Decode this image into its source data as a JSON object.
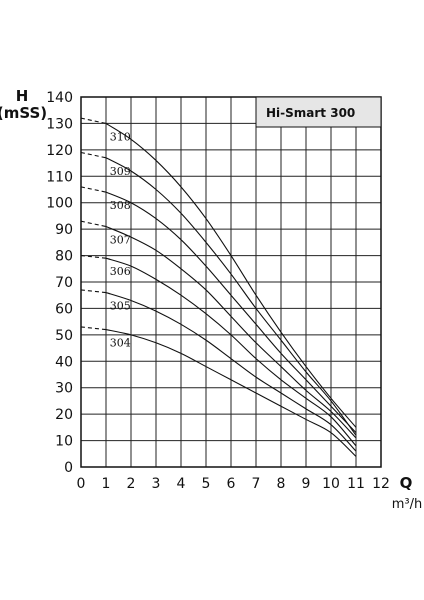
{
  "chart_data": {
    "type": "line",
    "header_label": "Hi-Smart 300",
    "y_title": "H",
    "y_unit": "(mSS)",
    "x_title": "Q",
    "x_unit": "m³/h",
    "xlim": [
      0,
      12
    ],
    "ylim": [
      0,
      140
    ],
    "x_ticks": [
      0,
      1,
      2,
      3,
      4,
      5,
      6,
      7,
      8,
      9,
      10,
      11,
      12
    ],
    "y_ticks": [
      0,
      10,
      20,
      30,
      40,
      50,
      60,
      70,
      80,
      90,
      100,
      110,
      120,
      130,
      140
    ],
    "grid": true,
    "dashed_until_x": 1,
    "x": [
      0,
      1,
      2,
      3,
      4,
      5,
      6,
      7,
      8,
      9,
      10,
      11
    ],
    "series": [
      {
        "name": "310",
        "values": [
          132,
          130,
          124,
          116,
          106,
          94,
          80,
          65,
          51,
          38,
          26,
          15
        ]
      },
      {
        "name": "309",
        "values": [
          119,
          117,
          112,
          105,
          96,
          85,
          73,
          60,
          48,
          36,
          25,
          12
        ]
      },
      {
        "name": "308",
        "values": [
          106,
          104,
          100,
          94,
          86,
          76,
          65,
          54,
          43,
          33,
          23,
          13
        ]
      },
      {
        "name": "307",
        "values": [
          93,
          91,
          87,
          82,
          75,
          67,
          57,
          47,
          38,
          29,
          21,
          11
        ]
      },
      {
        "name": "306",
        "values": [
          80,
          79,
          76,
          71,
          65,
          58,
          50,
          41,
          33,
          26,
          19,
          8
        ]
      },
      {
        "name": "305",
        "values": [
          67,
          66,
          63,
          59,
          54,
          48,
          41,
          34,
          28,
          22,
          16,
          6
        ]
      },
      {
        "name": "304",
        "values": [
          53,
          52,
          50,
          47,
          43,
          38,
          33,
          28,
          23,
          18,
          13,
          4
        ]
      }
    ]
  }
}
